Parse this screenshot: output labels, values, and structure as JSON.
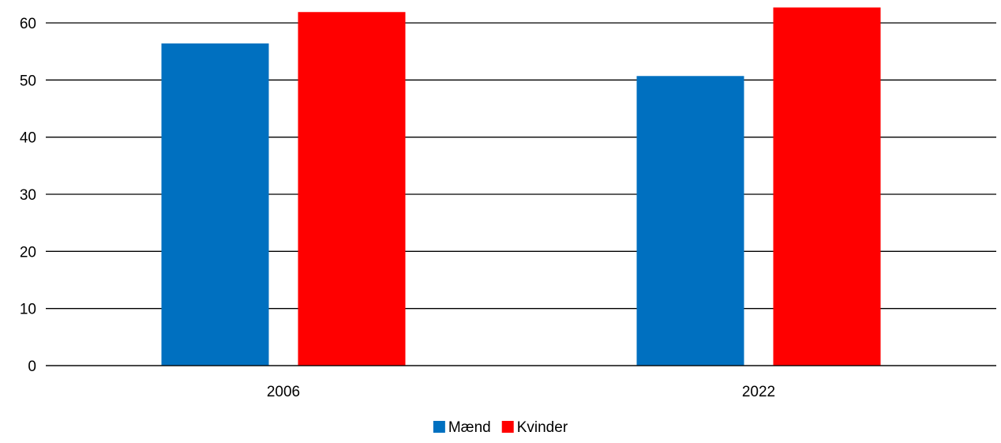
{
  "chart_data": {
    "type": "bar",
    "title": "",
    "xlabel": "",
    "ylabel": "",
    "categories": [
      "2006",
      "2022"
    ],
    "series": [
      {
        "name": "Mænd",
        "values": [
          56.4,
          50.7
        ],
        "color": "#0070C0"
      },
      {
        "name": "Kvinder",
        "values": [
          61.9,
          62.7
        ],
        "color": "#FF0000"
      }
    ],
    "ylim": [
      0,
      60
    ],
    "yticks": [
      0,
      10,
      20,
      30,
      40,
      50,
      60
    ],
    "grid": true,
    "legend_position": "bottom"
  }
}
